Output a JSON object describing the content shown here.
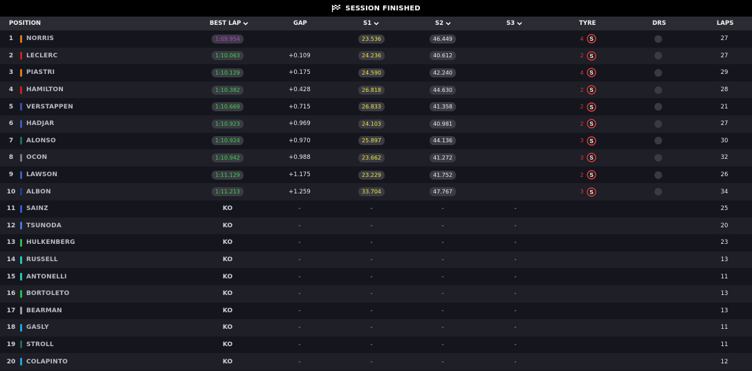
{
  "title": "SESSION FINISHED",
  "columns": {
    "position": "POSITION",
    "best_lap": "BEST LAP",
    "gap": "GAP",
    "s1": "S1",
    "s2": "S2",
    "s3": "S3",
    "tyre": "TYRE",
    "drs": "DRS",
    "laps": "LAPS"
  },
  "colors": {
    "fastest_lap": "#c43fd6",
    "personal_best": "#3fd04a",
    "sector_yellow": "#e9e23c",
    "soft_tyre": "#e23b3b"
  },
  "rows": [
    {
      "pos": "1",
      "name": "NORRIS",
      "team_color": "#d67a1e",
      "best_lap": "1:09.954",
      "best_color": "purple",
      "gap": "",
      "s1": "23.536",
      "s1_color": "yellow",
      "s2": "46.449",
      "s2_color": "white",
      "s3": "",
      "tyre_laps": "4",
      "tyre": "S",
      "laps": "27"
    },
    {
      "pos": "2",
      "name": "LECLERC",
      "team_color": "#c8201e",
      "best_lap": "1:10.063",
      "best_color": "green",
      "gap": "+0.109",
      "s1": "24.236",
      "s1_color": "yellow",
      "s2": "40.612",
      "s2_color": "white",
      "s3": "",
      "tyre_laps": "2",
      "tyre": "S",
      "laps": "27"
    },
    {
      "pos": "3",
      "name": "PIASTRI",
      "team_color": "#d67a1e",
      "best_lap": "1:10.129",
      "best_color": "green",
      "gap": "+0.175",
      "s1": "24.590",
      "s1_color": "yellow",
      "s2": "42.240",
      "s2_color": "white",
      "s3": "",
      "tyre_laps": "4",
      "tyre": "S",
      "laps": "29"
    },
    {
      "pos": "4",
      "name": "HAMILTON",
      "team_color": "#c8201e",
      "best_lap": "1:10.382",
      "best_color": "green",
      "gap": "+0.428",
      "s1": "26.818",
      "s1_color": "yellow",
      "s2": "44.630",
      "s2_color": "white",
      "s3": "",
      "tyre_laps": "2",
      "tyre": "S",
      "laps": "28"
    },
    {
      "pos": "5",
      "name": "VERSTAPPEN",
      "team_color": "#3b4fa8",
      "best_lap": "1:10.669",
      "best_color": "green",
      "gap": "+0.715",
      "s1": "26.833",
      "s1_color": "yellow",
      "s2": "41.358",
      "s2_color": "white",
      "s3": "",
      "tyre_laps": "2",
      "tyre": "S",
      "laps": "21"
    },
    {
      "pos": "6",
      "name": "HADJAR",
      "team_color": "#3f5ab8",
      "best_lap": "1:10.923",
      "best_color": "green",
      "gap": "+0.969",
      "s1": "24.103",
      "s1_color": "yellow",
      "s2": "40.981",
      "s2_color": "white",
      "s3": "",
      "tyre_laps": "2",
      "tyre": "S",
      "laps": "27"
    },
    {
      "pos": "7",
      "name": "ALONSO",
      "team_color": "#1e6b52",
      "best_lap": "1:10.924",
      "best_color": "green",
      "gap": "+0.970",
      "s1": "25.897",
      "s1_color": "yellow",
      "s2": "44.136",
      "s2_color": "white",
      "s3": "",
      "tyre_laps": "3",
      "tyre": "S",
      "laps": "30"
    },
    {
      "pos": "8",
      "name": "OCON",
      "team_color": "#7a7a80",
      "best_lap": "1:10.942",
      "best_color": "green",
      "gap": "+0.988",
      "s1": "23.662",
      "s1_color": "yellow",
      "s2": "41.272",
      "s2_color": "white",
      "s3": "",
      "tyre_laps": "3",
      "tyre": "S",
      "laps": "32"
    },
    {
      "pos": "9",
      "name": "LAWSON",
      "team_color": "#3f5ab8",
      "best_lap": "1:11.129",
      "best_color": "green",
      "gap": "+1.175",
      "s1": "23.229",
      "s1_color": "yellow",
      "s2": "41.752",
      "s2_color": "white",
      "s3": "",
      "tyre_laps": "2",
      "tyre": "S",
      "laps": "26"
    },
    {
      "pos": "10",
      "name": "ALBON",
      "team_color": "#1e3f8a",
      "best_lap": "1:11.213",
      "best_color": "green",
      "gap": "+1.259",
      "s1": "33.704",
      "s1_color": "yellow",
      "s2": "47.767",
      "s2_color": "white",
      "s3": "",
      "tyre_laps": "3",
      "tyre": "S",
      "laps": "34"
    },
    {
      "pos": "11",
      "name": "SAINZ",
      "team_color": "#2a5fd0",
      "best_lap": "KO",
      "best_color": "ko",
      "gap": "-",
      "s1": "-",
      "s1_color": "dash",
      "s2": "-",
      "s2_color": "dash",
      "s3": "-",
      "tyre_laps": "",
      "tyre": "",
      "laps": "25"
    },
    {
      "pos": "12",
      "name": "TSUNODA",
      "team_color": "#3f7ad8",
      "best_lap": "KO",
      "best_color": "ko",
      "gap": "-",
      "s1": "-",
      "s1_color": "dash",
      "s2": "-",
      "s2_color": "dash",
      "s3": "-",
      "tyre_laps": "",
      "tyre": "",
      "laps": "20"
    },
    {
      "pos": "13",
      "name": "HULKENBERG",
      "team_color": "#2fb84a",
      "best_lap": "KO",
      "best_color": "ko",
      "gap": "-",
      "s1": "-",
      "s1_color": "dash",
      "s2": "-",
      "s2_color": "dash",
      "s3": "-",
      "tyre_laps": "",
      "tyre": "",
      "laps": "23"
    },
    {
      "pos": "14",
      "name": "RUSSELL",
      "team_color": "#1fc8b8",
      "best_lap": "KO",
      "best_color": "ko",
      "gap": "-",
      "s1": "-",
      "s1_color": "dash",
      "s2": "-",
      "s2_color": "dash",
      "s3": "-",
      "tyre_laps": "",
      "tyre": "",
      "laps": "13"
    },
    {
      "pos": "15",
      "name": "ANTONELLI",
      "team_color": "#1fc8b8",
      "best_lap": "KO",
      "best_color": "ko",
      "gap": "-",
      "s1": "-",
      "s1_color": "dash",
      "s2": "-",
      "s2_color": "dash",
      "s3": "-",
      "tyre_laps": "",
      "tyre": "",
      "laps": "11"
    },
    {
      "pos": "16",
      "name": "BORTOLETO",
      "team_color": "#2fb84a",
      "best_lap": "KO",
      "best_color": "ko",
      "gap": "-",
      "s1": "-",
      "s1_color": "dash",
      "s2": "-",
      "s2_color": "dash",
      "s3": "-",
      "tyre_laps": "",
      "tyre": "",
      "laps": "13"
    },
    {
      "pos": "17",
      "name": "BEARMAN",
      "team_color": "#9a9aa2",
      "best_lap": "KO",
      "best_color": "ko",
      "gap": "-",
      "s1": "-",
      "s1_color": "dash",
      "s2": "-",
      "s2_color": "dash",
      "s3": "-",
      "tyre_laps": "",
      "tyre": "",
      "laps": "13"
    },
    {
      "pos": "18",
      "name": "GASLY",
      "team_color": "#2a9ae0",
      "best_lap": "KO",
      "best_color": "ko",
      "gap": "-",
      "s1": "-",
      "s1_color": "dash",
      "s2": "-",
      "s2_color": "dash",
      "s3": "-",
      "tyre_laps": "",
      "tyre": "",
      "laps": "11"
    },
    {
      "pos": "19",
      "name": "STROLL",
      "team_color": "#1e6b52",
      "best_lap": "KO",
      "best_color": "ko",
      "gap": "-",
      "s1": "-",
      "s1_color": "dash",
      "s2": "-",
      "s2_color": "dash",
      "s3": "-",
      "tyre_laps": "",
      "tyre": "",
      "laps": "11"
    },
    {
      "pos": "20",
      "name": "COLAPINTO",
      "team_color": "#2a9ae0",
      "best_lap": "KO",
      "best_color": "ko",
      "gap": "-",
      "s1": "-",
      "s1_color": "dash",
      "s2": "-",
      "s2_color": "dash",
      "s3": "-",
      "tyre_laps": "",
      "tyre": "",
      "laps": "12"
    }
  ]
}
